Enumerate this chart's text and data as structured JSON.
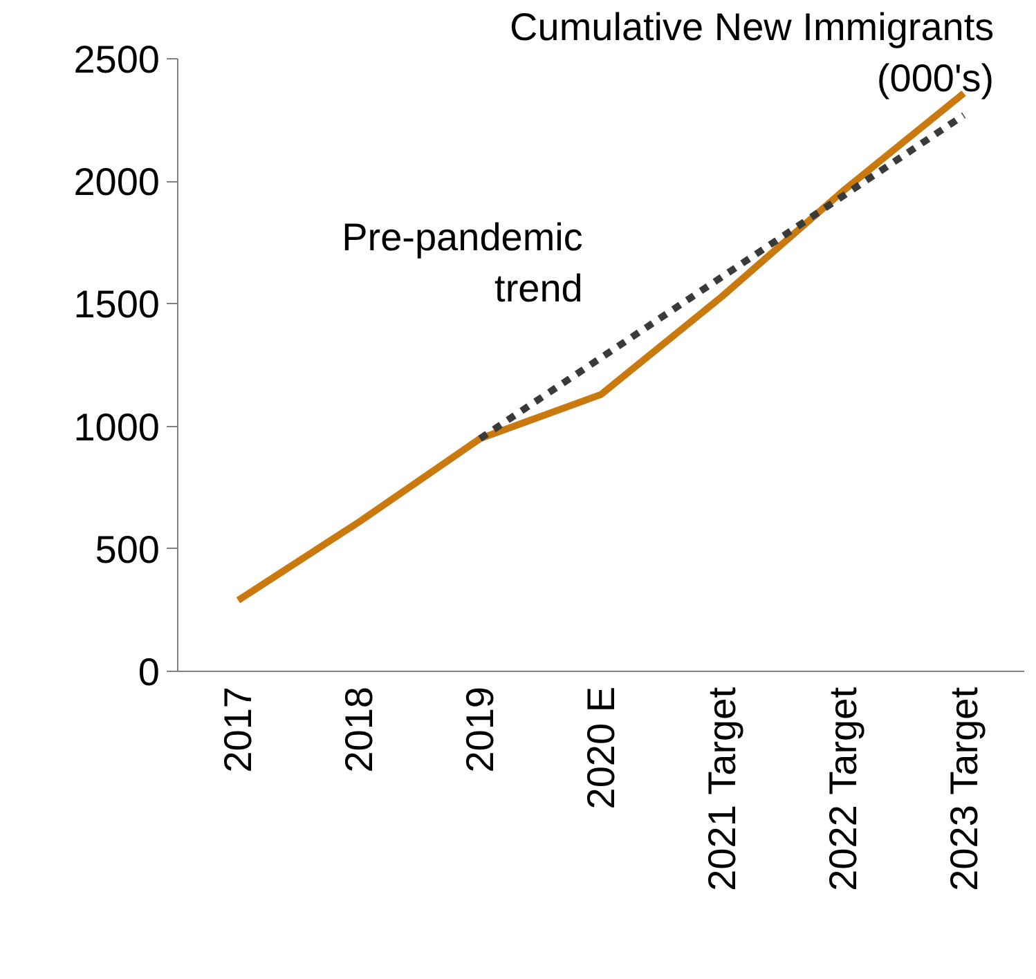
{
  "chart_data": {
    "type": "line",
    "title": "Cumulative New Immigrants\n(000's)",
    "categories": [
      "2017",
      "2018",
      "2019",
      "2020 E",
      "2021 Target",
      "2022 Target",
      "2023 Target"
    ],
    "series": [
      {
        "color": "#c9790e",
        "values": [
          290,
          610,
          950,
          1130,
          1530,
          1960,
          2360
        ],
        "line_style": "solid"
      },
      {
        "name": "Pre-pandemic trend",
        "color": "#3a3a3a",
        "values": [
          null,
          null,
          950,
          1280,
          1610,
          1940,
          2270
        ],
        "line_style": "dashed"
      }
    ],
    "ylim": [
      0,
      2500
    ],
    "yticks": [
      0,
      500,
      1000,
      1500,
      2000,
      2500
    ],
    "grid": false,
    "legend": false,
    "marker": "none"
  }
}
